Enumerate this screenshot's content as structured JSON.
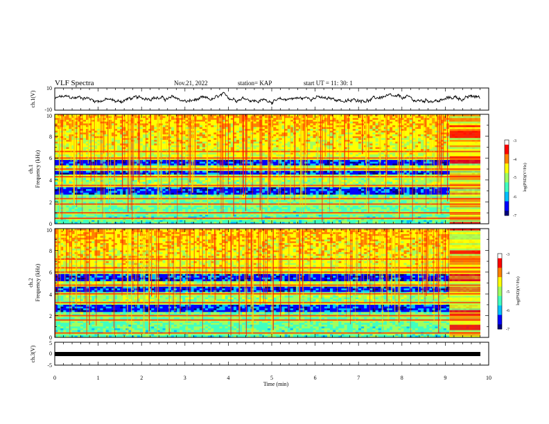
{
  "header": {
    "title": "VLF Spectra",
    "date": "Nov.21, 2022",
    "station": "station= KAP",
    "start": "start  UT =  11: 30: 1"
  },
  "colors": {
    "colormap": [
      "#00007f",
      "#0000ff",
      "#00c0ff",
      "#40ffc0",
      "#9fff60",
      "#ffff00",
      "#ff8000",
      "#ff0000",
      "#ffffff"
    ],
    "trace": "#000000"
  },
  "chart_data": [
    {
      "type": "line",
      "name": "waveform-ch1",
      "ylabel": "ch.1(V)",
      "ylim": [
        -10,
        10
      ],
      "yticks": [
        "10",
        "-10"
      ],
      "xlim": [
        0,
        10
      ],
      "series_summary": "noisy waveform oscillating roughly between -4 V and +5 V across 0–9.8 min"
    },
    {
      "type": "heatmap",
      "name": "spectrogram-ch1",
      "ylabel": "ch.1",
      "ylabel2": "Frequency (kHz)",
      "ylim": [
        0,
        10
      ],
      "yticks": [
        "0",
        "2",
        "4",
        "6",
        "8",
        "10"
      ],
      "xlim": [
        0,
        10
      ],
      "colorbar": {
        "label": "log(PSD)(V²/Hz)",
        "range": [
          -7,
          -3
        ],
        "ticks": [
          "-3",
          "-4",
          "-5",
          "-6",
          "-7"
        ]
      },
      "bands_khz": [
        0.5,
        1.0,
        1.8,
        2.3,
        3.5,
        4.3,
        5.0,
        6.0,
        6.6
      ],
      "quiet_bands_khz": [
        [
          4.5,
          4.9
        ],
        [
          5.3,
          5.9
        ],
        [
          2.7,
          3.4
        ]
      ]
    },
    {
      "type": "heatmap",
      "name": "spectrogram-ch2",
      "ylabel": "ch.2",
      "ylabel2": "Frequency (kHz)",
      "ylim": [
        0,
        10
      ],
      "yticks": [
        "0",
        "2",
        "4",
        "6",
        "8",
        "10"
      ],
      "xlim": [
        0,
        10
      ],
      "colorbar": {
        "label": "log(PSD)(V²/Hz)",
        "range": [
          -7,
          -3
        ],
        "ticks": [
          "-3",
          "-4",
          "-5",
          "-6",
          "-7"
        ]
      },
      "bands_khz": [
        0.4,
        1.6,
        2.0,
        3.2,
        4.0,
        4.8,
        6.0,
        6.4,
        7.2
      ],
      "quiet_bands_khz": [
        [
          5.1,
          5.8
        ],
        [
          4.1,
          4.6
        ],
        [
          2.3,
          3.0
        ]
      ]
    },
    {
      "type": "line",
      "name": "waveform-ch3",
      "ylabel": "ch.3(V)",
      "ylim": [
        -5,
        5
      ],
      "yticks": [
        "5",
        "0",
        "-5"
      ],
      "xlim": [
        0,
        10
      ],
      "series_summary": "flat thick trace near 0 V across 0–9.8 min"
    }
  ],
  "xaxis": {
    "label": "Time (min)",
    "ticks": [
      "0",
      "1",
      "2",
      "3",
      "4",
      "5",
      "6",
      "7",
      "8",
      "9",
      "10"
    ]
  }
}
